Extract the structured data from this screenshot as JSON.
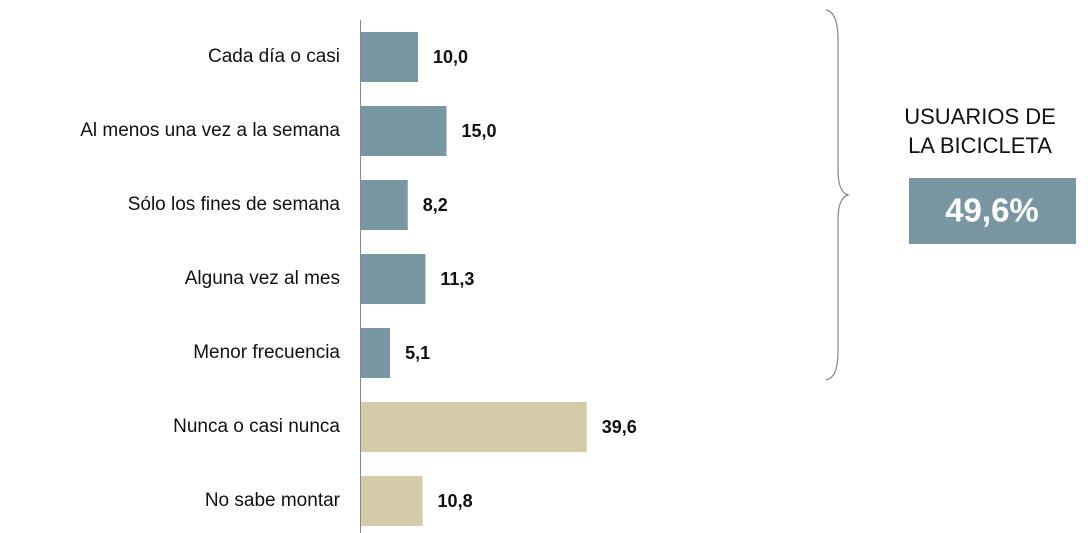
{
  "chart_data": {
    "type": "bar",
    "orientation": "horizontal",
    "categories": [
      "Cada día o casi",
      "Al menos una vez a la semana",
      "Sólo los fines de semana",
      "Alguna vez al mes",
      "Menor frecuencia",
      "Nunca o casi nunca",
      "No sabe montar"
    ],
    "values": [
      10.0,
      15.0,
      8.2,
      11.3,
      5.1,
      39.6,
      10.8
    ],
    "value_labels": [
      "10,0",
      "15,0",
      "8,2",
      "11,3",
      "5,1",
      "39,6",
      "10,8"
    ],
    "colors": [
      "#7897a3",
      "#7897a3",
      "#7897a3",
      "#7897a3",
      "#7897a3",
      "#d4cca8",
      "#d4cca8"
    ],
    "summary": {
      "label_lines": [
        "USUARIOS DE",
        "LA BICICLETA"
      ],
      "value": 49.6,
      "value_label": "49,6%",
      "color": "#7897a3"
    }
  }
}
